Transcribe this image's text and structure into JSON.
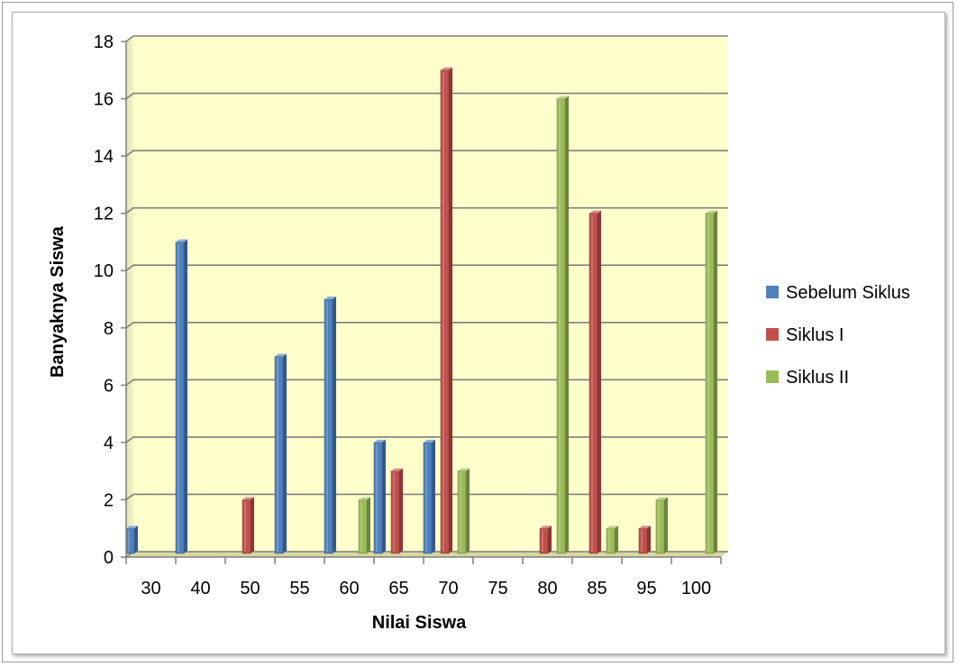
{
  "chart_data": {
    "type": "bar",
    "categories": [
      "30",
      "40",
      "50",
      "55",
      "60",
      "65",
      "70",
      "75",
      "80",
      "85",
      "95",
      "100"
    ],
    "series": [
      {
        "name": "Sebelum Siklus",
        "values": [
          1,
          11,
          0,
          7,
          9,
          4,
          4,
          0,
          0,
          0,
          0,
          0
        ],
        "color": "#4f81bd"
      },
      {
        "name": "Siklus I",
        "values": [
          0,
          0,
          2,
          0,
          0,
          3,
          17,
          0,
          1,
          12,
          1,
          0
        ],
        "color": "#c0504d"
      },
      {
        "name": "Siklus II",
        "values": [
          0,
          0,
          0,
          0,
          2,
          0,
          3,
          0,
          16,
          1,
          2,
          12
        ],
        "color": "#9bbb59"
      }
    ],
    "title": "",
    "xlabel": "Nilai Siswa",
    "ylabel": "Banyaknya Siswa",
    "ylim": [
      0,
      18
    ],
    "yticks": [
      "0",
      "2",
      "4",
      "6",
      "8",
      "10",
      "12",
      "14",
      "16",
      "18"
    ],
    "grid": true,
    "legend_position": "right",
    "plot_background": "#ffffcc"
  }
}
